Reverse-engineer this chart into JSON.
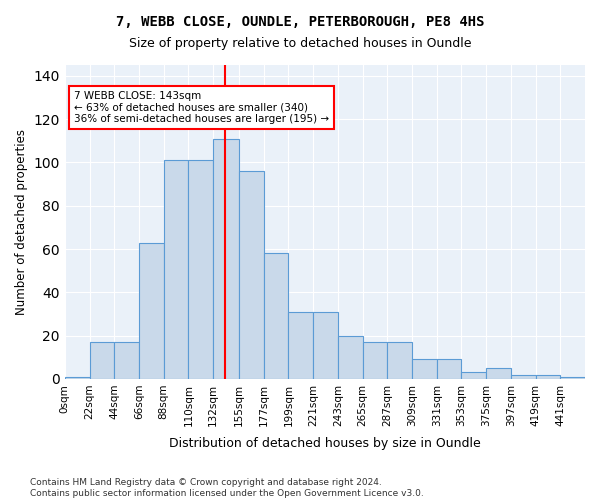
{
  "title_line1": "7, WEBB CLOSE, OUNDLE, PETERBOROUGH, PE8 4HS",
  "title_line2": "Size of property relative to detached houses in Oundle",
  "xlabel": "Distribution of detached houses by size in Oundle",
  "ylabel": "Number of detached properties",
  "bin_labels": [
    "0sqm",
    "22sqm",
    "44sqm",
    "66sqm",
    "88sqm",
    "110sqm",
    "132sqm",
    "155sqm",
    "177sqm",
    "199sqm",
    "221sqm",
    "243sqm",
    "265sqm",
    "287sqm",
    "309sqm",
    "331sqm",
    "353sqm",
    "375sqm",
    "397sqm",
    "419sqm",
    "441sqm"
  ],
  "bar_values": [
    1,
    17,
    17,
    63,
    101,
    101,
    111,
    96,
    58,
    31,
    31,
    20,
    17,
    17,
    9,
    9,
    3,
    5,
    2,
    2,
    1
  ],
  "bar_color": "#c9d9ea",
  "bar_edge_color": "#5b9bd5",
  "vline_x": 143,
  "vline_color": "red",
  "annotation_text": "7 WEBB CLOSE: 143sqm\n← 63% of detached houses are smaller (340)\n36% of semi-detached houses are larger (195) →",
  "annotation_box_color": "white",
  "annotation_box_edge_color": "red",
  "ylim": [
    0,
    145
  ],
  "yticks": [
    0,
    20,
    40,
    60,
    80,
    100,
    120,
    140
  ],
  "background_color": "#eaf1f9",
  "grid_color": "white",
  "footnote": "Contains HM Land Registry data © Crown copyright and database right 2024.\nContains public sector information licensed under the Open Government Licence v3.0.",
  "bin_edges": [
    0,
    22,
    44,
    66,
    88,
    110,
    132,
    155,
    177,
    199,
    221,
    243,
    265,
    287,
    309,
    331,
    353,
    375,
    397,
    419,
    441,
    463
  ]
}
